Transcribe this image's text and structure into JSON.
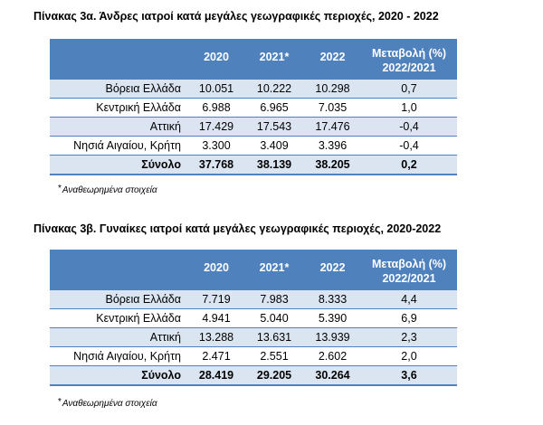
{
  "table_a": {
    "title": "Πίνακας 3α. Άνδρες ιατροί κατά μεγάλες γεωγραφικές περιοχές, 2020 - 2022",
    "headers": [
      "",
      "2020",
      "2021*",
      "2022",
      "Μεταβολή (%)",
      "2022/2021"
    ],
    "rows": [
      [
        "Βόρεια Ελλάδα",
        "10.051",
        "10.222",
        "10.298",
        "0,7"
      ],
      [
        "Κεντρική Ελλάδα",
        "6.988",
        "6.965",
        "7.035",
        "1,0"
      ],
      [
        "Αττική",
        "17.429",
        "17.543",
        "17.476",
        "-0,4"
      ],
      [
        "Νησιά Αιγαίου, Κρήτη",
        "3.300",
        "3.409",
        "3.396",
        "-0,4"
      ]
    ],
    "total": [
      "Σύνολο",
      "37.768",
      "38.139",
      "38.205",
      "0,2"
    ],
    "note_mark": "*",
    "note": "Αναθεωρημένα στοιχεία"
  },
  "table_b": {
    "title": "Πίνακας 3β. Γυναίκες ιατροί κατά μεγάλες γεωγραφικές περιοχές, 2020-2022",
    "headers": [
      "",
      "2020",
      "2021*",
      "2022",
      "Μεταβολή (%)",
      "2022/2021"
    ],
    "rows": [
      [
        "Βόρεια Ελλάδα",
        "7.719",
        "7.983",
        "8.333",
        "4,4"
      ],
      [
        "Κεντρική Ελλάδα",
        "4.941",
        "5.040",
        "5.390",
        "6,9"
      ],
      [
        "Αττική",
        "13.288",
        "13.631",
        "13.939",
        "2,3"
      ],
      [
        "Νησιά Αιγαίου, Κρήτη",
        "2.471",
        "2.551",
        "2.602",
        "2,0"
      ]
    ],
    "total": [
      "Σύνολο",
      "28.419",
      "29.205",
      "30.264",
      "3,6"
    ],
    "note_mark": "*",
    "note": "Αναθεωρημένα στοιχεία"
  }
}
